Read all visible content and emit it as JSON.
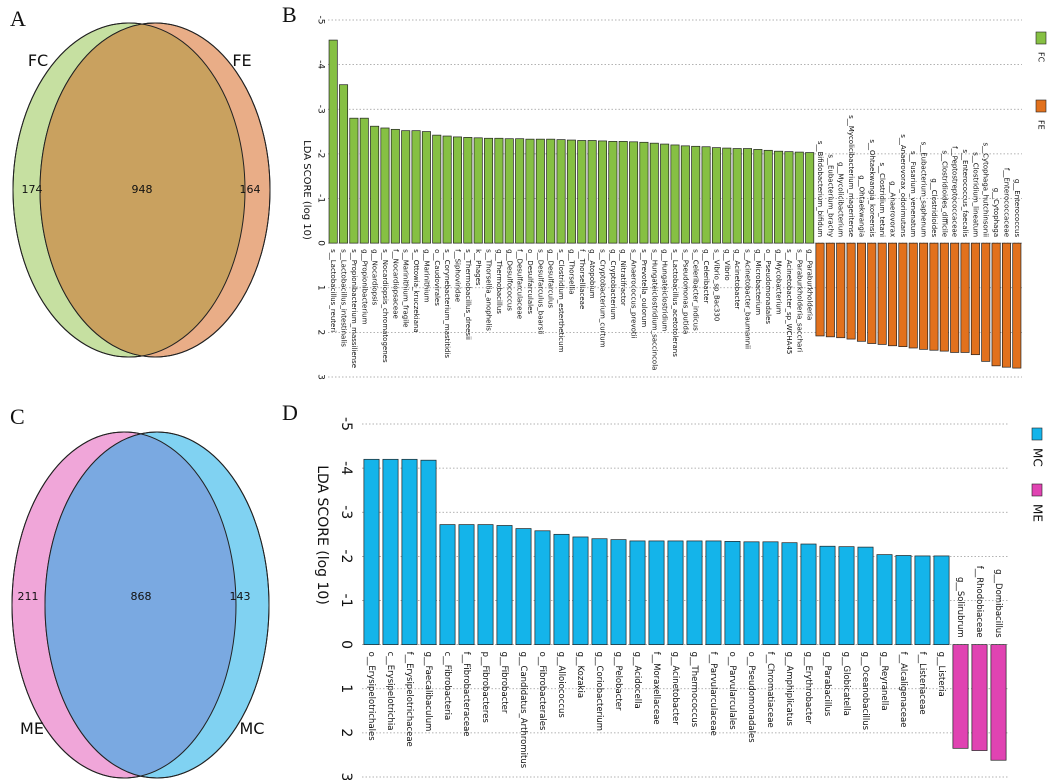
{
  "chart_data": [
    {
      "type": "venn",
      "panel": "A",
      "sets": [
        {
          "name": "FC",
          "color": "#c6e0a1"
        },
        {
          "name": "FE",
          "color": "#e9ad87"
        }
      ],
      "overlap_color": "#c9a15f",
      "values": [
        174,
        948,
        164
      ]
    },
    {
      "type": "lda_bar",
      "panel": "B",
      "ylabel": "LDA SCORE (log 10)",
      "ylim": [
        -5,
        3
      ],
      "y_inverted": true,
      "yticks": [
        -5,
        -4,
        -3,
        -2,
        -1,
        0,
        1,
        2,
        3
      ],
      "grid": true,
      "categories": [
        "s__Lactobacillus_reuteri",
        "s__Lactobacillus_intestinalis",
        "s__Propionibacterium_massiliense",
        "g__Propionibacterium",
        "g__Nocardiopsis",
        "s__Nocardiopsis_chromatogenes",
        "f__Nocardiopsaceae",
        "s__Marinithium_fragile",
        "s__Ottowia_kruczekiana",
        "g__Marinithium",
        "o__Caudovirales",
        "s__Corynebacterium_mastitidis",
        "f__Siphoviridae",
        "s__Thermobacillus_dreesii",
        "k__Phages",
        "s__Thorsellia_anophelis",
        "g__Thermobacillus",
        "g__Desulfococcus",
        "f__Desulfarculaceae",
        "o__Desulfarculales",
        "s__Desulfarculus_baarsii",
        "g__Desulfarculus",
        "s__Clostridium_estertheticum",
        "g__Thorsellia",
        "f__Thorselliaceae",
        "g__Atopobium",
        "s__Cryptobacterium_curtum",
        "g__Cryptobacterium",
        "g__Nitratifractor",
        "s__Anaerococcus_prevotii",
        "s__Prevotella_oulorum",
        "s__Hungateiclostridium_saccincola",
        "g__Hungateiclostridium",
        "s__Lactobacillus_acetotolerans",
        "s__Pseudomonas_putida",
        "s__Celeribacter_indicus",
        "g__Celeribacter",
        "s__Vibrio_sp_Bac330",
        "g__Vibrio",
        "g__Acinetobacter",
        "s__Acinetobacter_baumannii",
        "g__Microbacterium",
        "o__Pseudomonadales",
        "g__Mycobacterium",
        "s__Acinetobacter_sp_WCHA45",
        "s__Paraburkholderia_sacchari",
        "g__Paraburkholderia",
        "s__Bifidobacterium_bifidum",
        "s__Eubacterium_brachy",
        "g__Mycolicibacterium",
        "s__Mycolicibacterium_mageritense",
        "g__Ohtaekwangia",
        "s__Ohtaekwangia_koreensis",
        "s__Clostridium_tetani",
        "g__Anaerovorax",
        "s__Anaerovorax_odorimutans",
        "s__Fusarium_venenatum",
        "s__Eubacterium_saphenum",
        "g__Clostridioides",
        "s__Clostridioides_difficile",
        "f__Peptostreptococcaceae",
        "s__Enterococcus_faecalis",
        "s__Clostridium_lineatum",
        "s__Cytophaga_hutchinsonii",
        "g__Cytophaga",
        "f__Enterococcaceae",
        "g__Enterococcus"
      ],
      "series": [
        {
          "name": "FC",
          "color": "#86c043",
          "values": [
            -4.55,
            -3.55,
            -2.8,
            -2.8,
            -2.62,
            -2.58,
            -2.55,
            -2.52,
            -2.52,
            -2.5,
            -2.42,
            -2.4,
            -2.38,
            -2.37,
            -2.36,
            -2.35,
            -2.35,
            -2.34,
            -2.34,
            -2.33,
            -2.33,
            -2.33,
            -2.32,
            -2.31,
            -2.3,
            -2.3,
            -2.29,
            -2.28,
            -2.28,
            -2.27,
            -2.26,
            -2.24,
            -2.22,
            -2.2,
            -2.18,
            -2.17,
            -2.16,
            -2.14,
            -2.13,
            -2.12,
            -2.12,
            -2.1,
            -2.08,
            -2.06,
            -2.05,
            -2.04,
            -2.03,
            null,
            null,
            null,
            null,
            null,
            null,
            null,
            null,
            null,
            null,
            null,
            null,
            null,
            null,
            null,
            null,
            null,
            null,
            null,
            null
          ]
        },
        {
          "name": "FE",
          "color": "#e2711d",
          "values": [
            null,
            null,
            null,
            null,
            null,
            null,
            null,
            null,
            null,
            null,
            null,
            null,
            null,
            null,
            null,
            null,
            null,
            null,
            null,
            null,
            null,
            null,
            null,
            null,
            null,
            null,
            null,
            null,
            null,
            null,
            null,
            null,
            null,
            null,
            null,
            null,
            null,
            null,
            null,
            null,
            null,
            null,
            null,
            null,
            null,
            null,
            null,
            2.08,
            2.1,
            2.12,
            2.15,
            2.2,
            2.25,
            2.27,
            2.3,
            2.32,
            2.35,
            2.38,
            2.4,
            2.42,
            2.45,
            2.45,
            2.5,
            2.65,
            2.75,
            2.78,
            2.8
          ]
        }
      ]
    },
    {
      "type": "venn",
      "panel": "C",
      "sets": [
        {
          "name": "ME",
          "color": "#f0a6d9"
        },
        {
          "name": "MC",
          "color": "#80d2f2"
        }
      ],
      "overlap_color": "#7aa9e1",
      "values": [
        211,
        868,
        143
      ]
    },
    {
      "type": "lda_bar",
      "panel": "D",
      "ylabel": "LDA SCORE (log 10)",
      "ylim": [
        -5,
        3
      ],
      "y_inverted": true,
      "yticks": [
        -5,
        -4,
        -3,
        -2,
        -1,
        0,
        1,
        2,
        3
      ],
      "grid": true,
      "categories": [
        "o__Erysipelotrichales",
        "c__Erysipelotrichia",
        "f__Erysipelotrichaceae",
        "g__Faecalibaculum",
        "c__Fibrobacteria",
        "f__Fibrobacteraceae",
        "p__Fibrobacteres",
        "g__Fibrobacter",
        "g__Candidatus_Arthromitus",
        "o__Fibrobacterales",
        "g__Alloiococcus",
        "g__Kozakia",
        "g__Coriobacterium",
        "g__Pelobacter",
        "g__Acidocella",
        "f__Moraxellaceae",
        "g__Acinetobacter",
        "g__Thermococcus",
        "f__Parvularculaceae",
        "o__Parvularculales",
        "o__Pseudomonadales",
        "f__Chromatiaceae",
        "g__Amphiplicatus",
        "g__Erythrobacter",
        "g__Parabacillus",
        "g__Globicatella",
        "g__Oceanobacillus",
        "g__Reyranella",
        "f__Alcaligenaceae",
        "f__Listeriaceae",
        "g__Listeria",
        "g__Solirubrum",
        "f__Rhodobiaceae",
        "g__Domibacillus"
      ],
      "series": [
        {
          "name": "MC",
          "color": "#14b4ea",
          "values": [
            -4.2,
            -4.2,
            -4.2,
            -4.18,
            -2.72,
            -2.72,
            -2.72,
            -2.7,
            -2.63,
            -2.58,
            -2.5,
            -2.44,
            -2.4,
            -2.38,
            -2.35,
            -2.35,
            -2.35,
            -2.35,
            -2.35,
            -2.34,
            -2.33,
            -2.33,
            -2.31,
            -2.28,
            -2.23,
            -2.22,
            -2.21,
            -2.04,
            -2.02,
            -2.01,
            -2.01,
            null,
            null,
            null
          ]
        },
        {
          "name": "ME",
          "color": "#e043b2",
          "values": [
            null,
            null,
            null,
            null,
            null,
            null,
            null,
            null,
            null,
            null,
            null,
            null,
            null,
            null,
            null,
            null,
            null,
            null,
            null,
            null,
            null,
            null,
            null,
            null,
            null,
            null,
            null,
            null,
            null,
            null,
            null,
            2.35,
            2.4,
            2.62
          ]
        }
      ]
    }
  ]
}
